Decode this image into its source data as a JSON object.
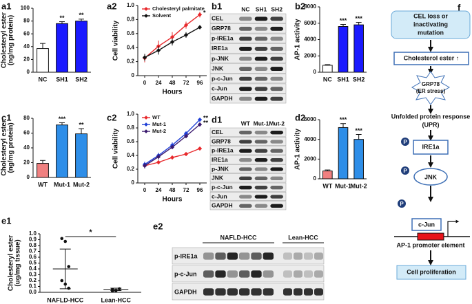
{
  "chart_data": [
    {
      "type": "bar",
      "label": "a1",
      "y_label": [
        "Cholesteryl ester",
        "(ng/mg protein)"
      ],
      "categories": [
        "NC",
        "SH1",
        "SH2"
      ],
      "values": [
        37,
        76,
        80
      ],
      "errors": [
        8,
        3,
        3
      ],
      "colors": [
        "#ffffff",
        "#1a1aff",
        "#1a1aff"
      ],
      "annotations": [
        null,
        "**",
        "**"
      ],
      "ylim": [
        0,
        100
      ],
      "yticks": [
        0,
        20,
        40,
        60,
        80,
        100
      ]
    },
    {
      "type": "line",
      "label": "a2",
      "x_label": "Hours",
      "y_label": [
        "Cell viability"
      ],
      "x": [
        0,
        24,
        48,
        72,
        96
      ],
      "xlim": [
        -12,
        108
      ],
      "xticks": [
        0,
        24,
        48,
        72,
        96
      ],
      "ylim": [
        0,
        1
      ],
      "yticks": [
        0,
        0.2,
        0.4,
        0.6,
        0.8,
        {
          "value": 1,
          "label": "1.0"
        }
      ],
      "legend": "upper left",
      "series": [
        {
          "name": "Cholesteryl palmitate",
          "color": "#e8282b",
          "values": [
            0.25,
            0.42,
            0.55,
            0.72,
            0.87
          ],
          "errors": [
            0.06,
            0.08,
            0.07,
            0.05,
            0.04
          ],
          "annotation": "*"
        },
        {
          "name": "Solvent",
          "color": "#111111",
          "values": [
            0.26,
            0.36,
            0.48,
            0.58,
            0.69
          ],
          "errors": [
            0.05,
            0.06,
            0.05,
            0.04,
            0.03
          ]
        }
      ]
    },
    {
      "type": "bar",
      "label": "b2",
      "y_label": [
        "AP-1 activity"
      ],
      "categories": [
        "NC",
        "SH1",
        "SH2"
      ],
      "values": [
        850,
        5600,
        5800
      ],
      "errors": [
        80,
        250,
        300
      ],
      "colors": [
        "#ffffff",
        "#1a1aff",
        "#1a1aff"
      ],
      "annotations": [
        null,
        "***",
        "***"
      ],
      "ylim": [
        0,
        8000
      ],
      "yticks": [
        0,
        2000,
        4000,
        6000,
        8000
      ]
    },
    {
      "type": "bar",
      "label": "c1",
      "y_label": [
        "Cholesteryl ester",
        "(ng/mg protein)"
      ],
      "categories": [
        "WT",
        "Mut-1",
        "Mut-2"
      ],
      "values": [
        19,
        71,
        59
      ],
      "errors": [
        4,
        3,
        7
      ],
      "colors": [
        "#f08080",
        "#2e8ee8",
        "#2e8ee8"
      ],
      "annotations": [
        null,
        "***",
        "**"
      ],
      "ylim": [
        0,
        80
      ],
      "yticks": [
        0,
        20,
        40,
        60,
        80
      ]
    },
    {
      "type": "line",
      "label": "c2",
      "x_label": "Hours",
      "y_label": [
        "Cell viability"
      ],
      "x": [
        0,
        24,
        48,
        72,
        96
      ],
      "xlim": [
        -12,
        108
      ],
      "xticks": [
        0,
        24,
        48,
        72,
        96
      ],
      "ylim": [
        0,
        1
      ],
      "yticks": [
        0,
        0.2,
        0.4,
        0.6,
        0.8,
        {
          "value": 1,
          "label": "1.0"
        }
      ],
      "legend": "upper left",
      "series": [
        {
          "name": "WT",
          "color": "#e8282b",
          "values": [
            0.25,
            0.3,
            0.37,
            0.42,
            0.5
          ],
          "errors": [
            0.04,
            0.03,
            0.03,
            0.03,
            0.02
          ]
        },
        {
          "name": "Mut-1",
          "color": "#1f3fd6",
          "values": [
            0.27,
            0.4,
            0.55,
            0.72,
            0.92
          ],
          "errors": [
            0.04,
            0.04,
            0.04,
            0.03,
            0.03
          ],
          "annotation": "**"
        },
        {
          "name": "Mut-2",
          "color": "#3b1a6e",
          "values": [
            0.25,
            0.38,
            0.52,
            0.68,
            0.85
          ],
          "errors": [
            0.04,
            0.04,
            0.03,
            0.03,
            0.03
          ],
          "annotation": "**"
        }
      ]
    },
    {
      "type": "bar",
      "label": "d2",
      "y_label": [
        "AP-1 activity"
      ],
      "categories": [
        "WT",
        "Mut-1",
        "Mut-2"
      ],
      "values": [
        800,
        5200,
        4000
      ],
      "errors": [
        100,
        400,
        500
      ],
      "colors": [
        "#f08080",
        "#2e8ee8",
        "#2e8ee8"
      ],
      "annotations": [
        null,
        "***",
        "***"
      ],
      "ylim": [
        0,
        6000
      ],
      "yticks": [
        0,
        2000,
        4000,
        6000
      ]
    },
    {
      "type": "dotplot",
      "label": "e1",
      "y_label": [
        "Cholesteryl ester",
        "(ug/mg tissue)"
      ],
      "ylim": [
        0,
        1
      ],
      "yticks": [
        {
          "value": 0,
          "label": "0.0"
        },
        0.1,
        0.2,
        0.3,
        0.4,
        0.5,
        0.6,
        0.7,
        0.8,
        0.9,
        {
          "value": 1,
          "label": "1.0"
        }
      ],
      "significance": "*",
      "groups": [
        {
          "name": "NAFLD-HCC",
          "values": [
            0.92,
            0.87,
            0.44,
            0.2,
            0.14,
            0.07
          ],
          "mean": 0.4,
          "sd": 0.34
        },
        {
          "name": "Lean-HCC",
          "values": [
            0.05,
            0.03,
            0.06,
            0.02
          ],
          "mean": 0.05,
          "sd": 0.02
        }
      ]
    }
  ],
  "blots": [
    {
      "label": "b1",
      "lanes": [
        "NC",
        "SH1",
        "SH2"
      ],
      "rows": [
        "CEL",
        "GRP78",
        "p-IRE1a",
        "IRE1a",
        "p-JNK",
        "JNK",
        "p-c-Jun",
        "c-Jun",
        "GAPDH"
      ]
    },
    {
      "label": "d1",
      "lanes": [
        "WT",
        "Mut-1",
        "Mut-2"
      ],
      "rows": [
        "CEL",
        "GRP78",
        "p-IRE1a",
        "IRE1a",
        "p-JNK",
        "JNK",
        "p-c-Jun",
        "c-Jun",
        "GAPDH"
      ]
    },
    {
      "label": "e2",
      "groups": [
        "NAFLD-HCC",
        "Lean-HCC"
      ],
      "rows": [
        "p-IRE1a",
        "p-c-Jun",
        "GAPDH"
      ]
    }
  ],
  "diagram": {
    "label": "f",
    "nodes": [
      {
        "lines": [
          "CEL loss or",
          "inactivating",
          "mutation"
        ]
      },
      {
        "lines": [
          "Cholesterol ester ↑"
        ]
      },
      {
        "lines": [
          "GRP78",
          "(ER stress)"
        ]
      },
      {
        "lines": [
          "Unfolded protein response",
          "(UPR)"
        ]
      },
      {
        "lines": [
          "IRE1a"
        ]
      },
      {
        "lines": [
          "JNK"
        ]
      },
      {
        "lines": [
          "c-Jun"
        ]
      },
      {
        "lines": [
          "AP-1 promoter element"
        ]
      },
      {
        "lines": [
          "Cell proliferation"
        ]
      }
    ],
    "phospho": [
      "P",
      "P",
      "P"
    ]
  }
}
